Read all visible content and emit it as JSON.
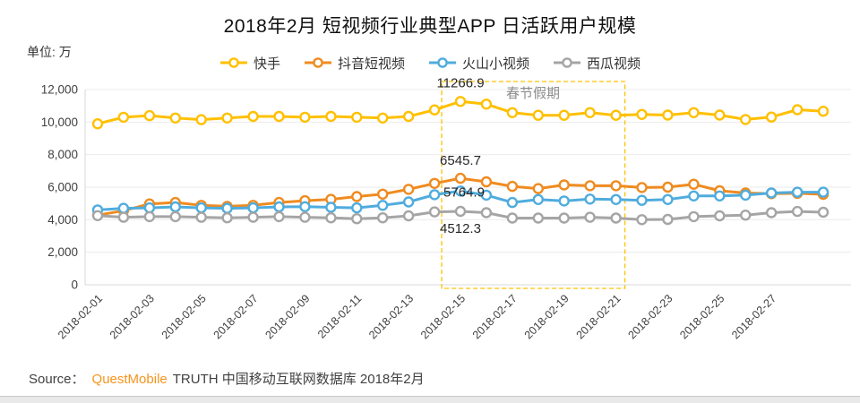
{
  "title": "2018年2月 短视频行业典型APP 日活跃用户规模",
  "unit_label": "单位: 万",
  "footer": {
    "source_label": "Source：",
    "brand": "QuestMobile",
    "brand_color": "#F7941E",
    "rest": "TRUTH 中国移动互联网数据库 2018年2月"
  },
  "chart_data": {
    "type": "line",
    "title": "2018年2月 短视频行业典型APP 日活跃用户规模",
    "ylabel": "单位: 万",
    "ylim": [
      0,
      12000
    ],
    "grid": true,
    "legend_position": "top",
    "y_ticks": [
      {
        "value": 0,
        "label": "0"
      },
      {
        "value": 2000,
        "label": "2,000"
      },
      {
        "value": 4000,
        "label": "4,000"
      },
      {
        "value": 6000,
        "label": "6,000"
      },
      {
        "value": 8000,
        "label": "8,000"
      },
      {
        "value": 10000,
        "label": "10,000"
      },
      {
        "value": 12000,
        "label": "12,000"
      }
    ],
    "x": [
      "2018-02-01",
      "2018-02-02",
      "2018-02-03",
      "2018-02-04",
      "2018-02-05",
      "2018-02-06",
      "2018-02-07",
      "2018-02-08",
      "2018-02-09",
      "2018-02-10",
      "2018-02-11",
      "2018-02-12",
      "2018-02-13",
      "2018-02-14",
      "2018-02-15",
      "2018-02-16",
      "2018-02-17",
      "2018-02-18",
      "2018-02-19",
      "2018-02-20",
      "2018-02-21",
      "2018-02-22",
      "2018-02-23",
      "2018-02-24",
      "2018-02-25",
      "2018-02-26",
      "2018-02-27",
      "2018-02-28",
      "2018-03-01"
    ],
    "x_tick_labels": [
      "2018-02-01",
      "2018-02-03",
      "2018-02-05",
      "2018-02-07",
      "2018-02-09",
      "2018-02-11",
      "2018-02-13",
      "2018-02-15",
      "2018-02-17",
      "2018-02-19",
      "2018-02-21",
      "2018-02-23",
      "2018-02-25",
      "2018-02-27"
    ],
    "x_tick_every": 2,
    "series": [
      {
        "key": "kuaishou",
        "name": "快手",
        "color": "#FFC000",
        "values": [
          9900,
          10300,
          10400,
          10250,
          10150,
          10250,
          10350,
          10350,
          10300,
          10350,
          10300,
          10250,
          10350,
          10750,
          11266.9,
          11100,
          10580,
          10420,
          10420,
          10580,
          10420,
          10470,
          10430,
          10580,
          10430,
          10160,
          10310,
          10760,
          10670
        ]
      },
      {
        "key": "douyin",
        "name": "抖音短视频",
        "color": "#EF8B20",
        "values": [
          4280,
          4550,
          4970,
          5060,
          4880,
          4820,
          4880,
          5060,
          5170,
          5250,
          5420,
          5570,
          5870,
          6230,
          6545.7,
          6330,
          6050,
          5910,
          6140,
          6090,
          6090,
          5980,
          6000,
          6180,
          5780,
          5640,
          5600,
          5620,
          5560
        ]
      },
      {
        "key": "huoshan",
        "name": "火山小视频",
        "color": "#4FACDE",
        "values": [
          4600,
          4700,
          4730,
          4790,
          4730,
          4700,
          4730,
          4790,
          4800,
          4760,
          4730,
          4880,
          5090,
          5540,
          5764.9,
          5510,
          5060,
          5240,
          5150,
          5270,
          5240,
          5190,
          5240,
          5460,
          5460,
          5510,
          5640,
          5690,
          5690
        ]
      },
      {
        "key": "xigua",
        "name": "西瓜视频",
        "color": "#A5A5A5",
        "values": [
          4250,
          4150,
          4190,
          4190,
          4150,
          4120,
          4150,
          4190,
          4150,
          4120,
          4060,
          4120,
          4240,
          4480,
          4512.3,
          4430,
          4100,
          4100,
          4100,
          4150,
          4100,
          4000,
          4020,
          4190,
          4240,
          4280,
          4430,
          4510,
          4460
        ]
      }
    ],
    "annotations": [
      {
        "text": "11266.9",
        "series_index": 0,
        "point_index": 14
      },
      {
        "text": "6545.7",
        "series_index": 1,
        "point_index": 14
      },
      {
        "text": "5764.9",
        "series_index": 2,
        "point_index": 14
      },
      {
        "text": "4512.3",
        "series_index": 3,
        "point_index": 14
      }
    ],
    "holiday_box": {
      "label": "春节假期",
      "start_date": "2018-02-15",
      "end_date": "2018-02-21",
      "start_index": 14,
      "end_index": 20,
      "box_color": "#FFC000",
      "label_color": "#8C8C8C"
    }
  }
}
